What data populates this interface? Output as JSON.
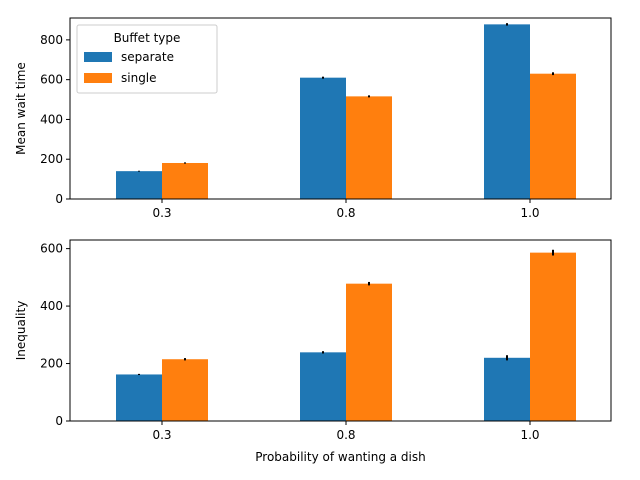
{
  "chart_data": [
    {
      "type": "bar",
      "title": "",
      "xlabel": "",
      "ylabel": "Mean wait time",
      "categories": [
        "0.3",
        "0.8",
        "1.0"
      ],
      "ylim": [
        0,
        910
      ],
      "yticks": [
        0,
        200,
        400,
        600,
        800
      ],
      "grid": false,
      "legend": {
        "title": "Buffet type",
        "placement": "top-left"
      },
      "series": [
        {
          "name": "separate",
          "color": "#1f77b4",
          "values": [
            140,
            610,
            878
          ],
          "errors": [
            2,
            5,
            6
          ]
        },
        {
          "name": "single",
          "color": "#ff7f0e",
          "values": [
            181,
            516,
            630
          ],
          "errors": [
            3,
            5,
            7
          ]
        }
      ]
    },
    {
      "type": "bar",
      "title": "",
      "xlabel": "Probability of wanting a dish",
      "ylabel": "Inequality",
      "categories": [
        "0.3",
        "0.8",
        "1.0"
      ],
      "ylim": [
        0,
        630
      ],
      "yticks": [
        0,
        200,
        400,
        600
      ],
      "grid": false,
      "series": [
        {
          "name": "separate",
          "color": "#1f77b4",
          "values": [
            162,
            239,
            220
          ],
          "errors": [
            2,
            4,
            9
          ]
        },
        {
          "name": "single",
          "color": "#ff7f0e",
          "values": [
            215,
            478,
            586
          ],
          "errors": [
            4,
            6,
            10
          ]
        }
      ]
    }
  ]
}
